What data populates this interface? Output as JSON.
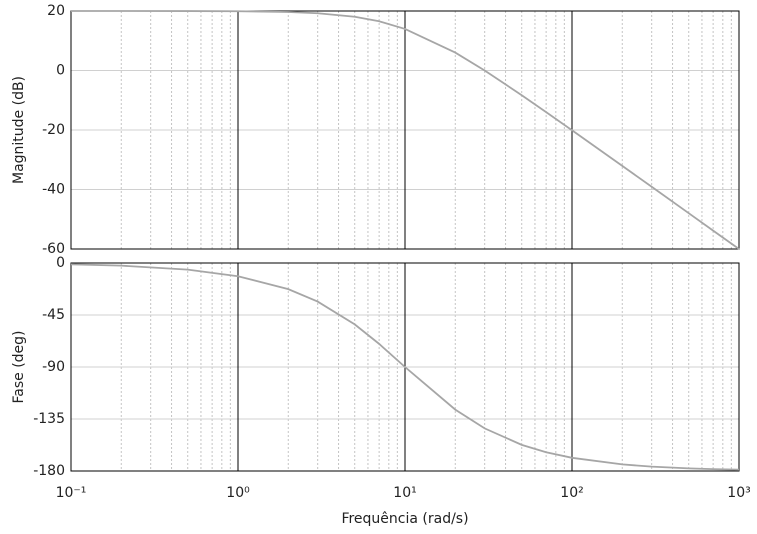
{
  "chart_data": [
    {
      "type": "line",
      "ylabel": "Magnitude (dB)",
      "xscale": "log",
      "xlim": [
        0.1,
        1000
      ],
      "ylim": [
        -60,
        20
      ],
      "yticks": [
        20,
        0,
        -20,
        -40,
        -60
      ],
      "grid": true,
      "color": "#a6a6a6",
      "x": [
        0.1,
        0.2,
        0.5,
        1,
        2,
        3,
        5,
        7,
        10,
        20,
        30,
        50,
        70,
        100,
        200,
        300,
        500,
        700,
        1000
      ],
      "values": [
        20.0,
        20.0,
        19.98,
        19.91,
        19.66,
        19.25,
        18.06,
        16.54,
        13.98,
        6.02,
        0.0,
        -8.3,
        -13.98,
        -20.09,
        -32.06,
        -39.09,
        -47.96,
        -53.81,
        -60.0
      ]
    },
    {
      "type": "line",
      "ylabel": "Fase (deg)",
      "xlabel": "Frequência (rad/s)",
      "xscale": "log",
      "xlim": [
        0.1,
        1000
      ],
      "ylim": [
        -180,
        0
      ],
      "yticks": [
        0,
        -45,
        -90,
        -135,
        -180
      ],
      "grid": true,
      "color": "#a6a6a6",
      "xticks": [
        {
          "value": 0.1,
          "label": "10⁻¹"
        },
        {
          "value": 1,
          "label": "10⁰"
        },
        {
          "value": 10,
          "label": "10¹"
        },
        {
          "value": 100,
          "label": "10²"
        },
        {
          "value": 1000,
          "label": "10³"
        }
      ],
      "x": [
        0.1,
        0.2,
        0.5,
        1,
        2,
        3,
        5,
        7,
        10,
        20,
        30,
        50,
        70,
        100,
        200,
        300,
        500,
        700,
        1000
      ],
      "values": [
        -1.15,
        -2.29,
        -5.72,
        -11.42,
        -22.62,
        -33.4,
        -53.13,
        -69.98,
        -90.0,
        -126.87,
        -143.13,
        -157.38,
        -163.74,
        -168.58,
        -174.28,
        -176.18,
        -177.71,
        -178.36,
        -178.85
      ]
    }
  ]
}
